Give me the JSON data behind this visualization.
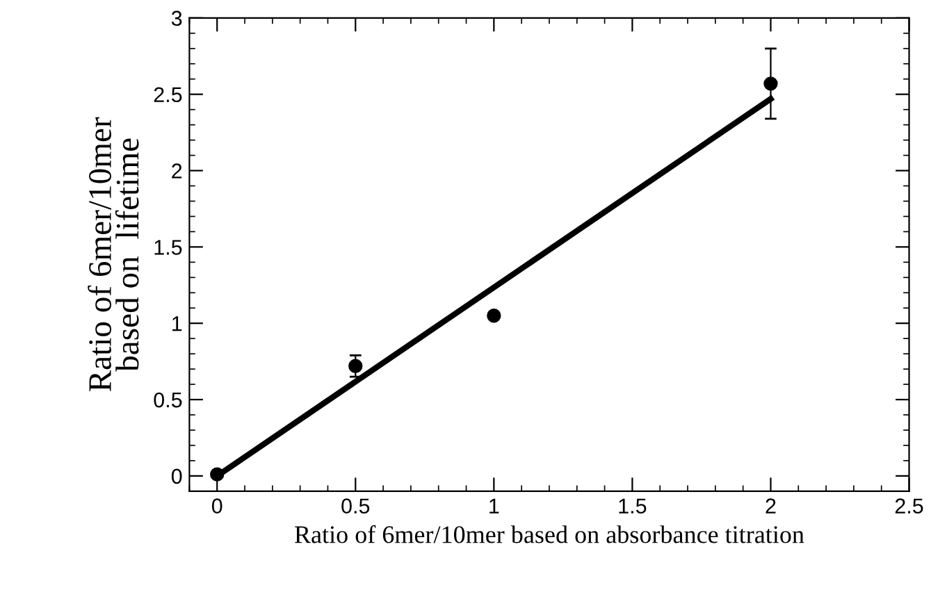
{
  "chart_data": {
    "type": "scatter",
    "xlabel": "Ratio of 6mer/10mer based on absorbance titration",
    "ylabel": "Ratio of 6mer/10mer\nbased on  lifetime",
    "series": [
      {
        "color": "#000000",
        "x": [
          0,
          0.5,
          1,
          2
        ],
        "values": [
          0.01,
          0.72,
          1.05,
          2.57
        ],
        "errors": [
          null,
          0.07,
          null,
          0.23
        ],
        "marker": "circle"
      },
      {
        "type": "line",
        "color": "#000000",
        "x": [
          0,
          2
        ],
        "values": [
          0,
          2.47
        ],
        "line_style": "solid"
      }
    ],
    "xlim": [
      -0.1,
      2.5
    ],
    "ylim": [
      -0.1,
      3
    ],
    "xticks": [
      0,
      0.5,
      1,
      1.5,
      2,
      2.5
    ],
    "yticks": [
      0,
      0.5,
      1,
      1.5,
      2,
      2.5,
      3
    ],
    "grid": false,
    "legend": false
  }
}
